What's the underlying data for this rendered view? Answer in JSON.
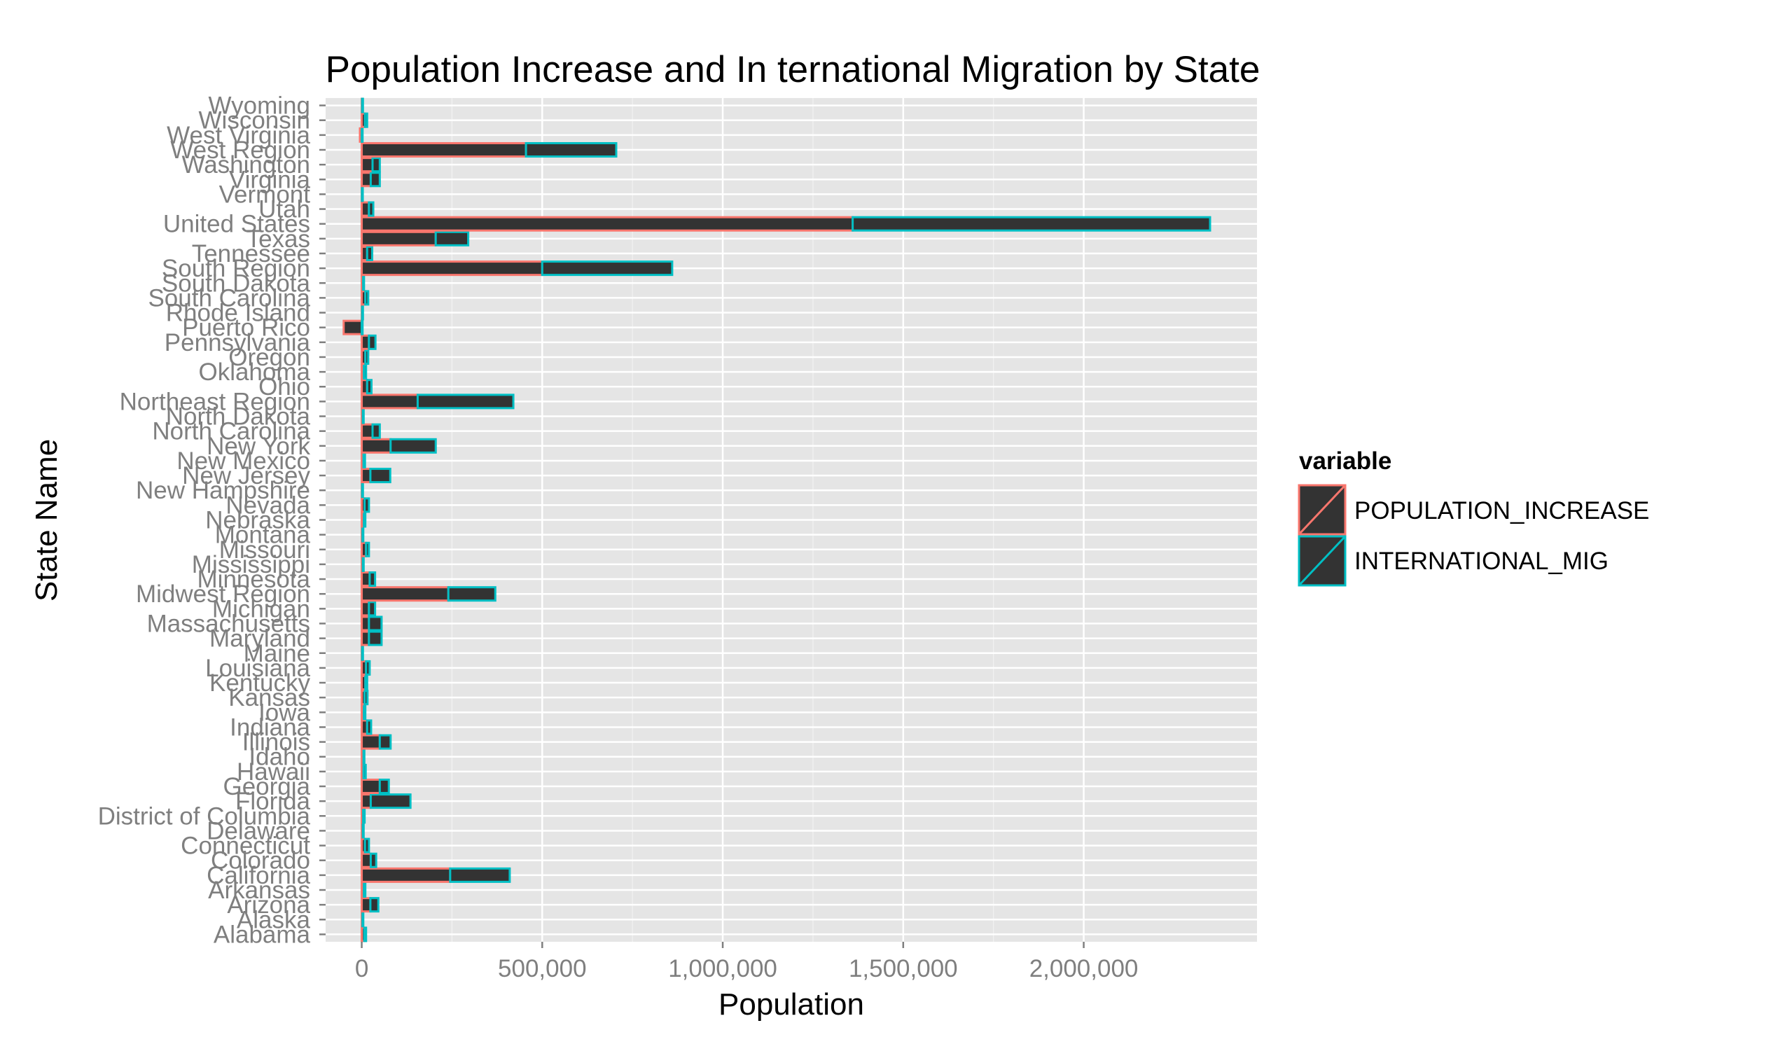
{
  "chart_data": {
    "type": "bar",
    "orientation": "horizontal",
    "title": "Population Increase and In ternational Migration by State",
    "xlabel": "Population",
    "ylabel": "State Name",
    "xlim": [
      -100000,
      2480000
    ],
    "x_ticks": [
      0,
      500000,
      1000000,
      1500000,
      2000000
    ],
    "x_tick_labels": [
      "0",
      "500,000",
      "1,000,000",
      "1,500,000",
      "2,000,000"
    ],
    "grid": true,
    "stacked": true,
    "legend": {
      "title": "variable",
      "position": "right",
      "items": [
        "POPULATION_INCREASE",
        "INTERNATIONAL_MIG"
      ]
    },
    "colors": {
      "bar_fill": "#333333",
      "POPULATION_INCREASE": "#F8766D",
      "INTERNATIONAL_MIG": "#00BFC4",
      "panel": "#E5E5E5",
      "gridline": "#FFFFFF",
      "tick_text": "#7F7F7F"
    },
    "categories": [
      "Alabama",
      "Alaska",
      "Arizona",
      "Arkansas",
      "California",
      "Colorado",
      "Connecticut",
      "Delaware",
      "District of Columbia",
      "Florida",
      "Georgia",
      "Hawaii",
      "Idaho",
      "Illinois",
      "Indiana",
      "Iowa",
      "Kansas",
      "Kentucky",
      "Louisiana",
      "Maine",
      "Maryland",
      "Massachusetts",
      "Michigan",
      "Midwest Region",
      "Minnesota",
      "Mississippi",
      "Missouri",
      "Montana",
      "Nebraska",
      "Nevada",
      "New Hampshire",
      "New Jersey",
      "New Mexico",
      "New York",
      "North Carolina",
      "North Dakota",
      "Northeast Region",
      "Ohio",
      "Oklahoma",
      "Oregon",
      "Pennsylvania",
      "Puerto Rico",
      "Rhode Island",
      "South Carolina",
      "South Dakota",
      "South Region",
      "Tennessee",
      "Texas",
      "United States",
      "Utah",
      "Vermont",
      "Virginia",
      "Washington",
      "West Region",
      "West Virginia",
      "Wisconsin",
      "Wyoming"
    ],
    "series": [
      {
        "name": "POPULATION_INCREASE",
        "values": [
          7000,
          2000,
          24000,
          6000,
          245000,
          25000,
          9000,
          3000,
          4000,
          25000,
          50000,
          5000,
          5000,
          50000,
          15000,
          6000,
          8000,
          10000,
          12000,
          1000,
          20000,
          20000,
          20000,
          240000,
          22000,
          3000,
          12000,
          2000,
          6000,
          8000,
          1000,
          24000,
          5000,
          80000,
          30000,
          3000,
          155000,
          15000,
          6000,
          10000,
          20000,
          -50000,
          1000,
          10000,
          4000,
          500000,
          15000,
          205000,
          1360000,
          20000,
          500,
          25000,
          30000,
          455000,
          -5000,
          9000,
          1000
        ]
      },
      {
        "name": "INTERNATIONAL_MIG",
        "values": [
          5000,
          1500,
          22000,
          4000,
          165000,
          15000,
          11000,
          2000,
          4000,
          110000,
          25000,
          6000,
          2000,
          30000,
          11000,
          4000,
          8000,
          5000,
          10000,
          1000,
          35000,
          35000,
          17000,
          130000,
          15000,
          2000,
          8000,
          1000,
          4000,
          12000,
          1500,
          55000,
          4000,
          125000,
          20000,
          1000,
          265000,
          12000,
          6000,
          8000,
          18000,
          2000,
          2000,
          8000,
          2000,
          360000,
          14000,
          90000,
          990000,
          12000,
          500,
          25000,
          20000,
          250000,
          1000,
          6000,
          1000
        ]
      }
    ]
  }
}
